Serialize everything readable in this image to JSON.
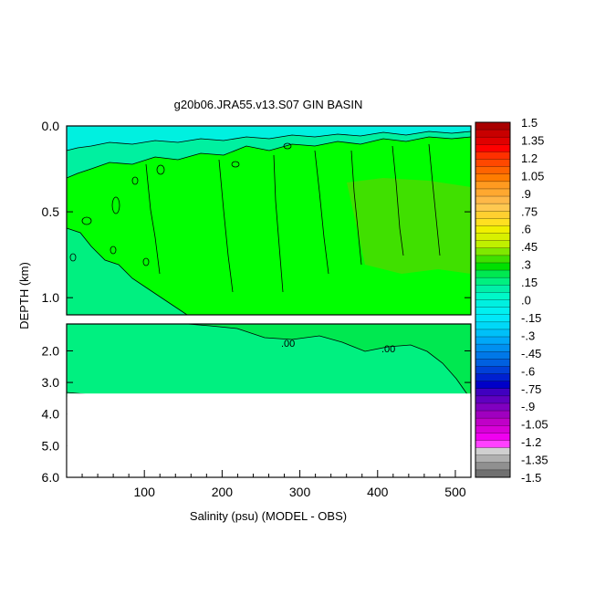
{
  "chart_data": {
    "type": "heatmap",
    "title": "g20b06.JRA55.v13.S07 GIN BASIN",
    "xlabel": "Salinity (psu) (MODEL - OBS)",
    "ylabel": "DEPTH (km)",
    "xlim": [
      0,
      520
    ],
    "x_ticks": [
      "100",
      "200",
      "300",
      "400",
      "500"
    ],
    "x_tick_values": [
      100,
      200,
      300,
      400,
      500
    ],
    "x_minor_step": 20,
    "upper_panel": {
      "ylim": [
        0.0,
        1.1
      ],
      "y_ticks": [
        "0.0",
        "0.5",
        "1.0"
      ],
      "y_tick_values": [
        0.0,
        0.5,
        1.0
      ]
    },
    "lower_panel": {
      "ylim": [
        1.15,
        6.0
      ],
      "y_ticks": [
        "2.0",
        "3.0",
        "4.0",
        "5.0",
        "6.0"
      ],
      "y_tick_values": [
        2.0,
        3.0,
        4.0,
        5.0,
        6.0
      ],
      "data_bottom_km": 3.35
    },
    "contour_labels": [
      ".00",
      ".00"
    ],
    "colorbar": {
      "min": -1.5,
      "max": 1.5,
      "labels": [
        "1.5",
        "1.35",
        "1.2",
        "1.05",
        ".9",
        ".75",
        ".6",
        ".45",
        ".3",
        ".15",
        ".0",
        "-.15",
        "-.3",
        "-.45",
        "-.6",
        "-.75",
        "-.9",
        "-1.05",
        "-1.2",
        "-1.35",
        "-1.5"
      ],
      "colors": [
        "#a80000",
        "#c80000",
        "#e00000",
        "#ff0000",
        "#ff3000",
        "#ff4800",
        "#ff6400",
        "#ff7c00",
        "#ff9a20",
        "#ffa830",
        "#ffb848",
        "#ffc850",
        "#ffd030",
        "#ffe020",
        "#f0f000",
        "#d8f000",
        "#c0f000",
        "#80e800",
        "#40e000",
        "#00e000",
        "#00e850",
        "#00f080",
        "#00f0a8",
        "#00f8c8",
        "#00f0e0",
        "#00f0f0",
        "#00e8f8",
        "#00d8f8",
        "#00c0f8",
        "#00a8f8",
        "#0090f0",
        "#0078e8",
        "#0060e0",
        "#0040d8",
        "#0020d0",
        "#0000c8",
        "#4000c0",
        "#6000c0",
        "#8000c0",
        "#a000c0",
        "#c000c8",
        "#d800d8",
        "#f000f0",
        "#ff40ff",
        "#d0d0d0",
        "#b0b0b0",
        "#909090",
        "#707070"
      ]
    }
  }
}
